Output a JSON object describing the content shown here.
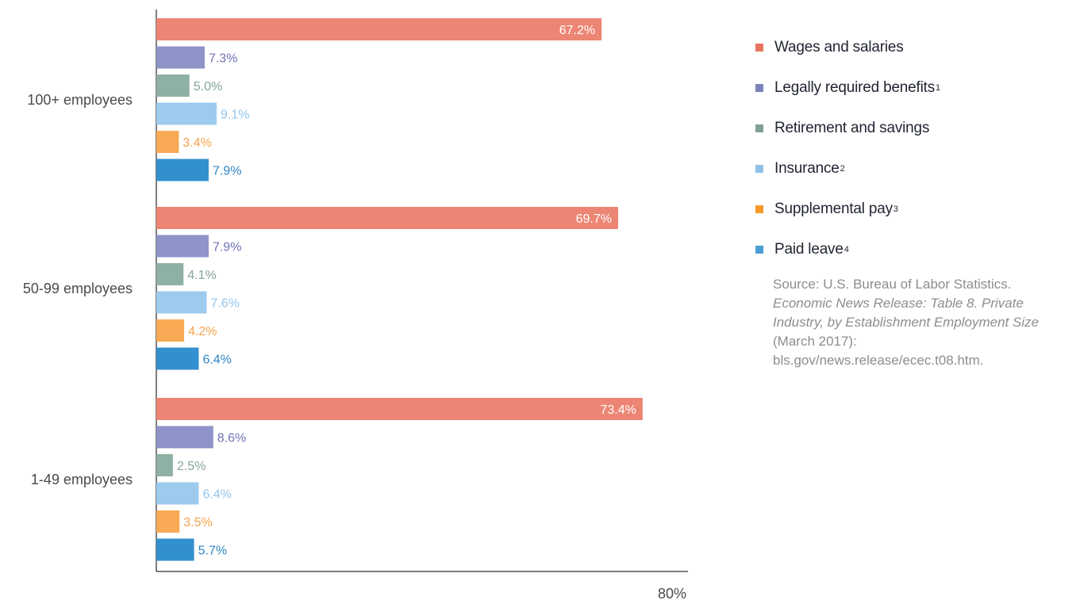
{
  "chart_data": {
    "type": "bar",
    "orientation": "horizontal",
    "categories": [
      "100+ employees",
      "50-99 employees",
      "1-49 employees"
    ],
    "series": [
      {
        "name": "Wages and salaries",
        "color": "#ec8573",
        "label_color": "#ffffff",
        "values": [
          67.2,
          69.7,
          73.4
        ],
        "labels": [
          "67.2%",
          "69.7%",
          "73.4%"
        ]
      },
      {
        "name": "Legally required benefits",
        "note": "1",
        "color": "#8e93c8",
        "label_color": "#6f73b4",
        "values": [
          7.3,
          7.9,
          8.6
        ],
        "labels": [
          "7.3%",
          "7.9%",
          "8.6%"
        ]
      },
      {
        "name": "Retirement and savings",
        "color": "#8fb0a4",
        "label_color": "#84a598",
        "values": [
          5.0,
          4.1,
          2.5
        ],
        "labels": [
          "5.0%",
          "4.1%",
          "2.5%"
        ]
      },
      {
        "name": "Insurance",
        "note": "2",
        "color": "#9ccbee",
        "label_color": "#92c4ea",
        "values": [
          9.1,
          7.6,
          6.4
        ],
        "labels": [
          "9.1%",
          "7.6%",
          "6.4%"
        ]
      },
      {
        "name": "Supplemental pay",
        "note": "3",
        "color": "#f8aa54",
        "label_color": "#f4a24a",
        "values": [
          3.4,
          4.2,
          3.5
        ],
        "labels": [
          "3.4%",
          "4.2%",
          "3.5%"
        ]
      },
      {
        "name": "Paid leave",
        "note": "4",
        "color": "#3390ce",
        "label_color": "#2f86c4",
        "values": [
          7.9,
          6.4,
          5.7
        ],
        "labels": [
          "7.9%",
          "6.4%",
          "5.7%"
        ]
      }
    ],
    "xlim": [
      0,
      80
    ],
    "x_tick_label": "80%",
    "grid": false,
    "legend_position": "right"
  },
  "legend": {
    "items": [
      {
        "label": "Wages and salaries",
        "sup": "",
        "color": "#e8735e"
      },
      {
        "label": "Legally required benefits",
        "sup": "1",
        "color": "#7f82bc"
      },
      {
        "label": "Retirement and savings",
        "sup": "",
        "color": "#7ea096"
      },
      {
        "label": "Insurance",
        "sup": "2",
        "color": "#8fc2ea"
      },
      {
        "label": "Supplemental pay",
        "sup": "3",
        "color": "#f59a2b"
      },
      {
        "label": "Paid leave",
        "sup": "4",
        "color": "#4a9ed3"
      }
    ]
  },
  "source": {
    "prefix": "Source: U.S. Bureau of Labor Statistics.",
    "italic": "Economic News Release: Table 8. Private Industry, by Establishment Employment Size",
    "suffix": "(March 2017): bls.gov/news.release/ecec.t08.htm."
  }
}
